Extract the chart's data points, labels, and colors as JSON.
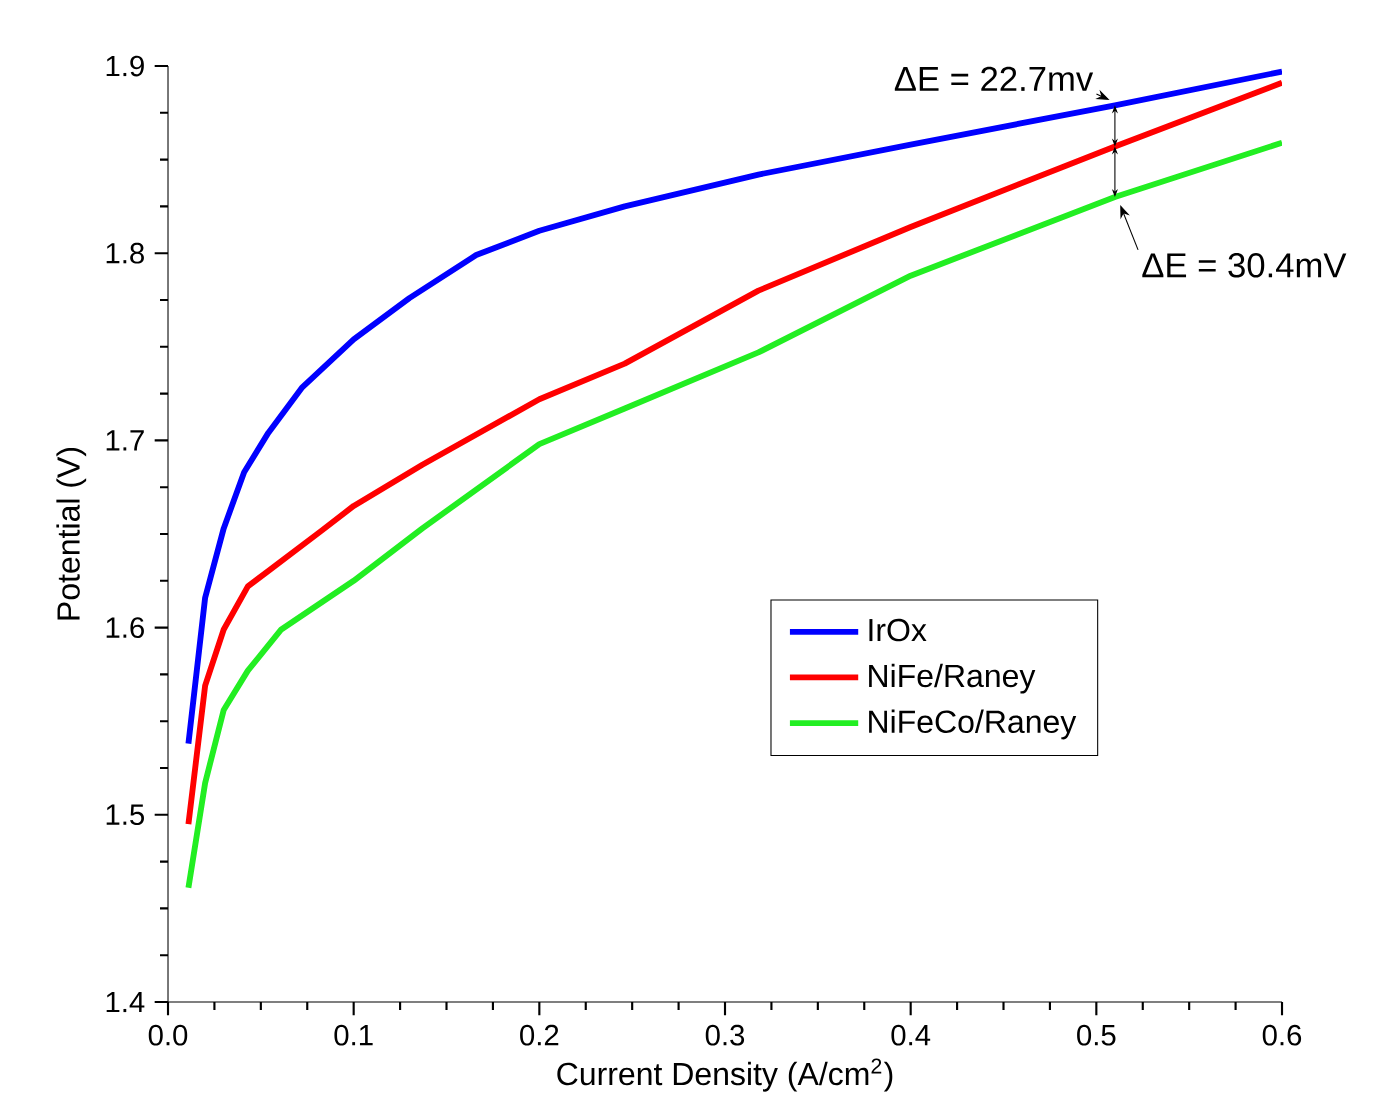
{
  "chart_data": {
    "type": "line",
    "xlabel": "Current Density (A/cm$^{2}$)",
    "ylabel": "Potential (V)",
    "xlim": [
      0,
      0.6
    ],
    "ylim": [
      1.4,
      1.9
    ],
    "xticks": [
      {
        "value": 0,
        "label": "0.0"
      },
      0.1,
      0.2,
      0.3,
      0.4,
      0.5,
      0.6
    ],
    "yticks": [
      1.4,
      1.5,
      1.6,
      1.7,
      1.8,
      1.9
    ],
    "grid": false,
    "legend": "right",
    "marker": "none",
    "line_style": "solid",
    "series": [
      {
        "name": "IrOx",
        "color": "#0000ff",
        "x": [
          0.011,
          0.02,
          0.03,
          0.041,
          0.054,
          0.072,
          0.1,
          0.13,
          0.166,
          0.2,
          0.246,
          0.318,
          0.4,
          0.51,
          0.6
        ],
        "values": [
          1.538,
          1.616,
          1.653,
          1.683,
          1.704,
          1.728,
          1.754,
          1.776,
          1.799,
          1.812,
          1.825,
          1.842,
          1.858,
          1.879,
          1.897
        ]
      },
      {
        "name": "NiFe/Raney",
        "color": "#ff0000",
        "x": [
          0.011,
          0.02,
          0.03,
          0.043,
          0.055,
          0.083,
          0.1,
          0.137,
          0.2,
          0.246,
          0.318,
          0.4,
          0.51,
          0.6
        ],
        "values": [
          1.495,
          1.569,
          1.599,
          1.622,
          1.631,
          1.652,
          1.665,
          1.687,
          1.722,
          1.741,
          1.78,
          1.814,
          1.857,
          1.891
        ]
      },
      {
        "name": "NiFeCo/Raney",
        "color": "#22ee22",
        "x": [
          0.011,
          0.02,
          0.03,
          0.043,
          0.061,
          0.1,
          0.137,
          0.2,
          0.246,
          0.318,
          0.4,
          0.51,
          0.6
        ],
        "values": [
          1.461,
          1.517,
          1.556,
          1.577,
          1.599,
          1.625,
          1.653,
          1.698,
          1.717,
          1.747,
          1.788,
          1.83,
          1.859
        ]
      }
    ],
    "annotations": [
      {
        "text": "ΔE = 22.7mv",
        "x": 0.51,
        "y": 1.879
      },
      {
        "text": "ΔE = 30.4mV",
        "x": 0.51,
        "y": 1.83
      }
    ]
  }
}
